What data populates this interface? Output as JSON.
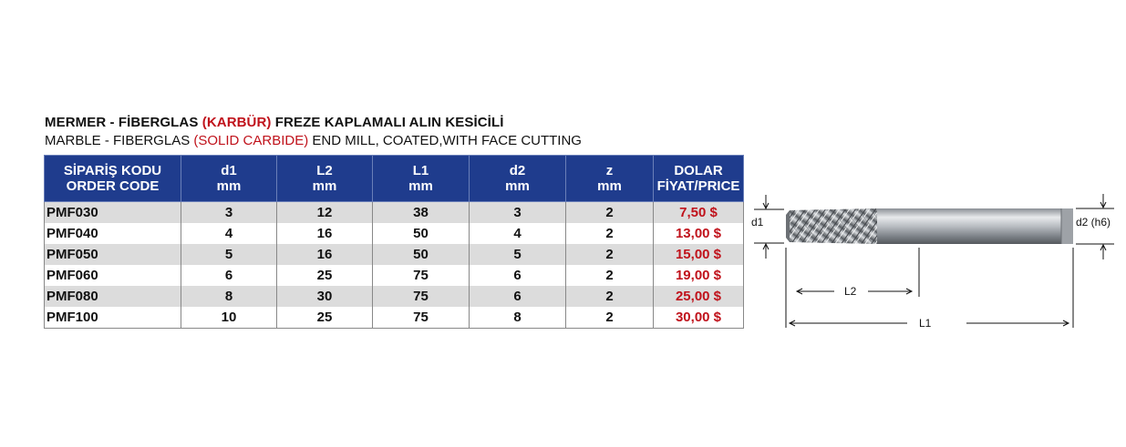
{
  "title": {
    "line1_pre": "MERMER - FİBERGLAS ",
    "line1_red": "(KARBÜR)",
    "line1_post": " FREZE KAPLAMALI ALIN KESİCİLİ",
    "line2_pre": "MARBLE - FIBERGLAS ",
    "line2_red": "(SOLID CARBIDE)",
    "line2_post": " END MILL, COATED,WITH FACE CUTTING"
  },
  "table": {
    "headers": [
      {
        "top": "SİPARİŞ KODU",
        "bottom": "ORDER CODE"
      },
      {
        "top": "d1",
        "bottom": "mm"
      },
      {
        "top": "L2",
        "bottom": "mm"
      },
      {
        "top": "L1",
        "bottom": "mm"
      },
      {
        "top": "d2",
        "bottom": "mm"
      },
      {
        "top": "z",
        "bottom": "mm"
      },
      {
        "top": "DOLAR",
        "bottom": "FİYAT/PRICE"
      }
    ],
    "rows": [
      {
        "code": "PMF030",
        "d1": "3",
        "l2": "12",
        "l1": "38",
        "d2": "3",
        "z": "2",
        "price": "7,50 $"
      },
      {
        "code": "PMF040",
        "d1": "4",
        "l2": "16",
        "l1": "50",
        "d2": "4",
        "z": "2",
        "price": "13,00 $"
      },
      {
        "code": "PMF050",
        "d1": "5",
        "l2": "16",
        "l1": "50",
        "d2": "5",
        "z": "2",
        "price": "15,00 $"
      },
      {
        "code": "PMF060",
        "d1": "6",
        "l2": "25",
        "l1": "75",
        "d2": "6",
        "z": "2",
        "price": "19,00 $"
      },
      {
        "code": "PMF080",
        "d1": "8",
        "l2": "30",
        "l1": "75",
        "d2": "6",
        "z": "2",
        "price": "25,00 $"
      },
      {
        "code": "PMF100",
        "d1": "10",
        "l2": "25",
        "l1": "75",
        "d2": "8",
        "z": "2",
        "price": "30,00 $"
      }
    ]
  },
  "diagram": {
    "d1_label": "d1",
    "d2_label": "d2 (h6)",
    "l2_label": "L2",
    "l1_label": "L1"
  }
}
